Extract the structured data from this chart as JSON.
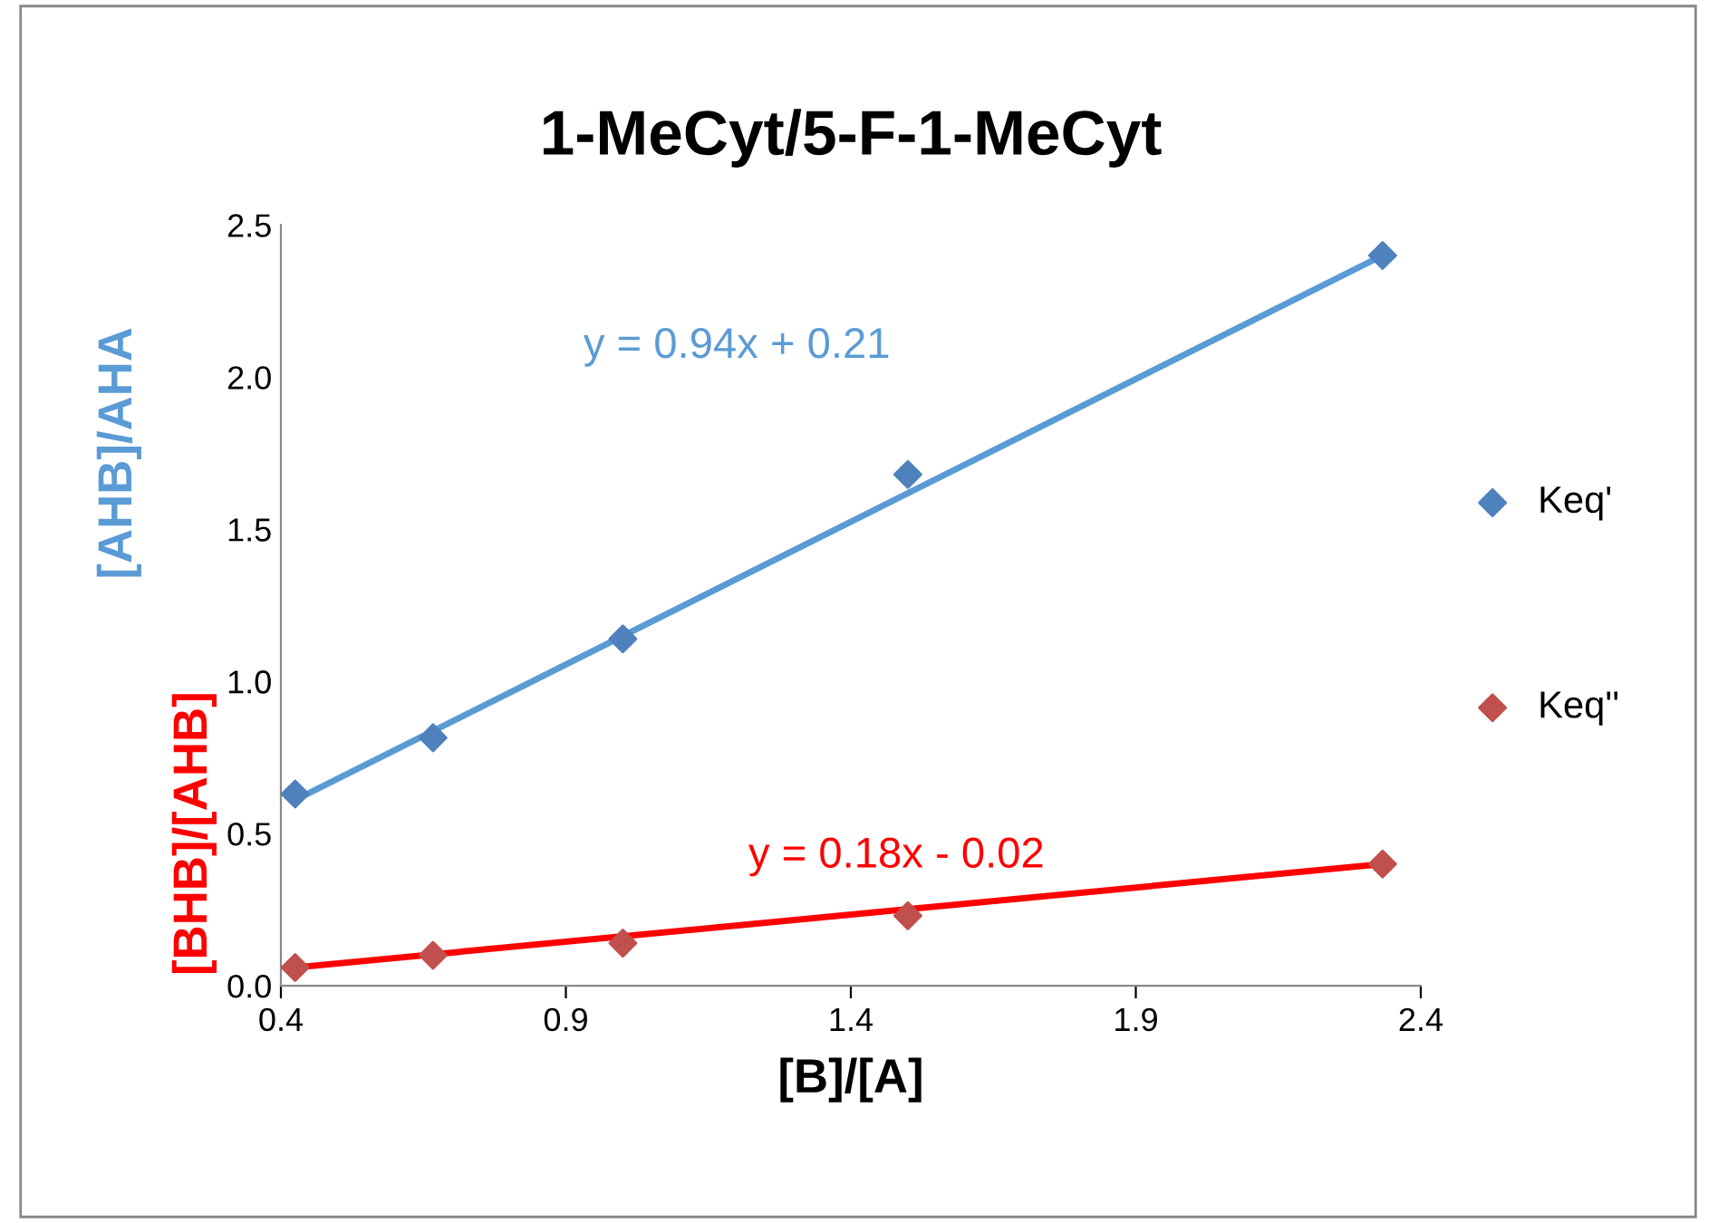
{
  "chart_data": {
    "type": "scatter",
    "title": "1-MeCyt/5-F-1-MeCyt",
    "xlabel": "[B]/[A]",
    "ylabel": "[BHB]/[AHB]",
    "annotations": [
      "[AHB]/AHA",
      "y = 0.94x + 0.21",
      "y = 0.18x - 0.02"
    ],
    "series": [
      {
        "name": "Keq'",
        "color": "#4f81bd",
        "x": [
          0.425,
          0.667,
          1.0,
          1.5,
          2.333
        ],
        "values": [
          0.63,
          0.815,
          1.14,
          1.68,
          2.4
        ]
      },
      {
        "name": "Keq''",
        "color": "#c0504d",
        "x": [
          0.425,
          0.667,
          1.0,
          1.5,
          2.333
        ],
        "values": [
          0.06,
          0.1,
          0.14,
          0.23,
          0.4
        ]
      },
      {
        "type": "line",
        "color": "#5b9bd5",
        "x": [
          0.425,
          2.333
        ],
        "values": [
          0.61,
          2.4
        ],
        "marker": "none"
      },
      {
        "type": "line",
        "color": "#ff0000",
        "x": [
          0.425,
          2.333
        ],
        "values": [
          0.06,
          0.4
        ],
        "marker": "none"
      }
    ],
    "xlim": [
      0.4,
      2.4
    ],
    "ylim": [
      0,
      2.5
    ],
    "xticks": [
      0.4,
      0.9,
      1.4,
      1.9,
      2.4
    ],
    "yticks": [
      {
        "value": 0,
        "label": "0.0"
      },
      0.5,
      {
        "value": 1,
        "label": "1.0"
      },
      1.5,
      {
        "value": 2,
        "label": "2.0"
      },
      2.5
    ],
    "marker": "diamond",
    "legend": "right",
    "grid": false
  }
}
